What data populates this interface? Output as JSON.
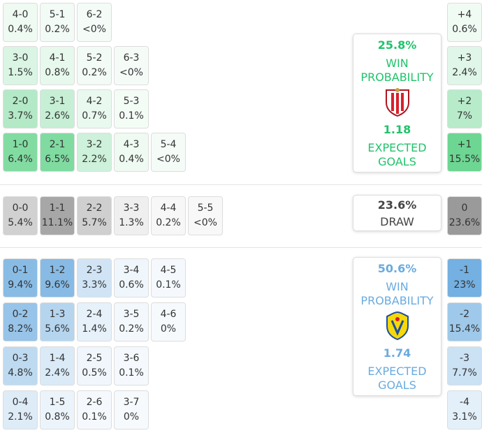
{
  "home": {
    "rows": [
      [
        {
          "score": "4-0",
          "prob": "0.4%"
        },
        {
          "score": "5-1",
          "prob": "0.2%"
        },
        {
          "score": "6-2",
          "prob": "<0%"
        }
      ],
      [
        {
          "score": "3-0",
          "prob": "1.5%"
        },
        {
          "score": "4-1",
          "prob": "0.8%"
        },
        {
          "score": "5-2",
          "prob": "0.2%"
        },
        {
          "score": "6-3",
          "prob": "<0%"
        }
      ],
      [
        {
          "score": "2-0",
          "prob": "3.7%"
        },
        {
          "score": "3-1",
          "prob": "2.6%"
        },
        {
          "score": "4-2",
          "prob": "0.7%"
        },
        {
          "score": "5-3",
          "prob": "0.1%"
        }
      ],
      [
        {
          "score": "1-0",
          "prob": "6.4%"
        },
        {
          "score": "2-1",
          "prob": "6.5%"
        },
        {
          "score": "3-2",
          "prob": "2.2%"
        },
        {
          "score": "4-3",
          "prob": "0.4%"
        },
        {
          "score": "5-4",
          "prob": "<0%"
        }
      ]
    ],
    "margins": [
      {
        "diff": "+4",
        "prob": "0.6%"
      },
      {
        "diff": "+3",
        "prob": "2.4%"
      },
      {
        "diff": "+2",
        "prob": "7%"
      },
      {
        "diff": "+1",
        "prob": "15.5%"
      }
    ],
    "win_probability": "25.8%",
    "win_label": "WIN PROBABILITY",
    "expected_goals": "1.18",
    "goals_label": "EXPECTED GOALS"
  },
  "draw": {
    "rows": [
      [
        {
          "score": "0-0",
          "prob": "5.4%"
        },
        {
          "score": "1-1",
          "prob": "11.1%"
        },
        {
          "score": "2-2",
          "prob": "5.7%"
        },
        {
          "score": "3-3",
          "prob": "1.3%"
        },
        {
          "score": "4-4",
          "prob": "0.2%"
        },
        {
          "score": "5-5",
          "prob": "<0%"
        }
      ]
    ],
    "margins": [
      {
        "diff": "0",
        "prob": "23.6%"
      }
    ],
    "probability": "23.6%",
    "label": "DRAW"
  },
  "away": {
    "rows": [
      [
        {
          "score": "0-1",
          "prob": "9.4%"
        },
        {
          "score": "1-2",
          "prob": "9.6%"
        },
        {
          "score": "2-3",
          "prob": "3.3%"
        },
        {
          "score": "3-4",
          "prob": "0.6%"
        },
        {
          "score": "4-5",
          "prob": "0.1%"
        }
      ],
      [
        {
          "score": "0-2",
          "prob": "8.2%"
        },
        {
          "score": "1-3",
          "prob": "5.6%"
        },
        {
          "score": "2-4",
          "prob": "1.4%"
        },
        {
          "score": "3-5",
          "prob": "0.2%"
        },
        {
          "score": "4-6",
          "prob": "0%"
        }
      ],
      [
        {
          "score": "0-3",
          "prob": "4.8%"
        },
        {
          "score": "1-4",
          "prob": "2.4%"
        },
        {
          "score": "2-5",
          "prob": "0.5%"
        },
        {
          "score": "3-6",
          "prob": "0.1%"
        }
      ],
      [
        {
          "score": "0-4",
          "prob": "2.1%"
        },
        {
          "score": "1-5",
          "prob": "0.8%"
        },
        {
          "score": "2-6",
          "prob": "0.1%"
        },
        {
          "score": "3-7",
          "prob": "0%"
        }
      ]
    ],
    "margins": [
      {
        "diff": "-1",
        "prob": "23%"
      },
      {
        "diff": "-2",
        "prob": "15.4%"
      },
      {
        "diff": "-3",
        "prob": "7.7%"
      },
      {
        "diff": "-4",
        "prob": "3.1%"
      }
    ],
    "win_probability": "50.6%",
    "win_label": "WIN PROBABILITY",
    "expected_goals": "1.74",
    "goals_label": "EXPECTED GOALS"
  }
}
